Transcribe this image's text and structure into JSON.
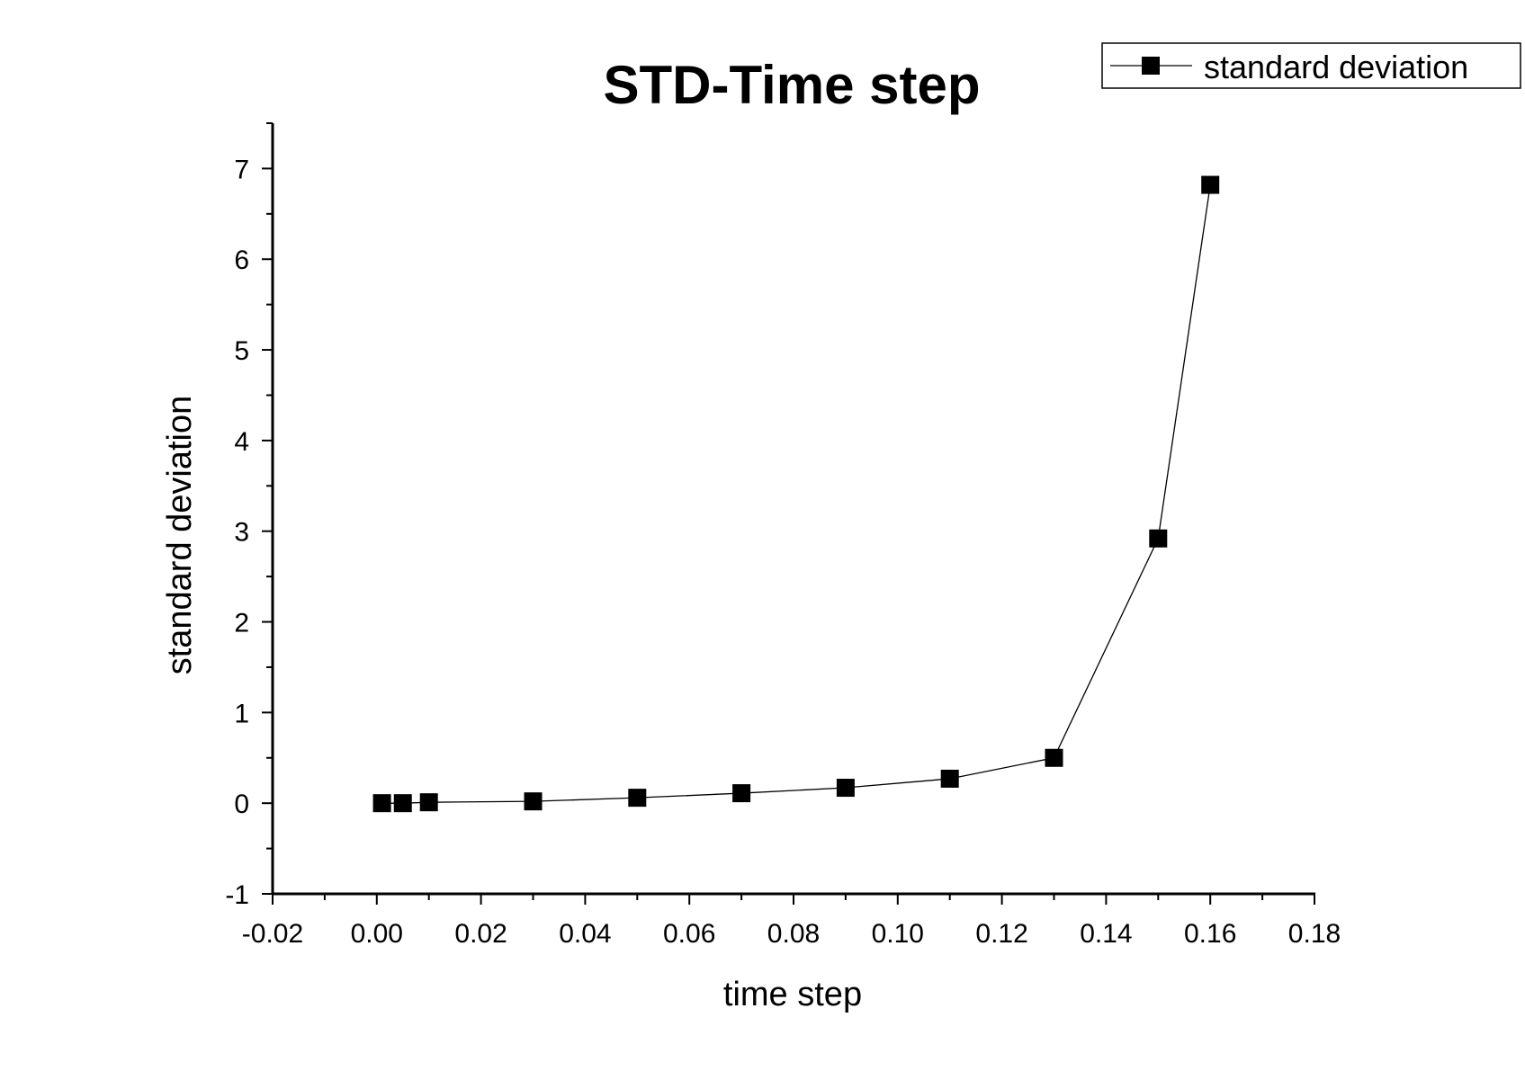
{
  "chart_data": {
    "type": "scatter",
    "title": "STD-Time step",
    "xlabel": "time step",
    "ylabel": "standard deviation",
    "xlim": [
      -0.02,
      0.18
    ],
    "ylim": [
      -1,
      7.5
    ],
    "xticks": [
      "-0.02",
      "0.00",
      "0.02",
      "0.04",
      "0.06",
      "0.08",
      "0.10",
      "0.12",
      "0.14",
      "0.16",
      "0.18"
    ],
    "yticks": [
      "-1",
      "0",
      "1",
      "2",
      "3",
      "4",
      "5",
      "6",
      "7"
    ],
    "grid": false,
    "legend_position": "top-right",
    "series": [
      {
        "name": "standard deviation",
        "marker": "square",
        "line": true,
        "color": "#000000",
        "x": [
          0.001,
          0.005,
          0.01,
          0.03,
          0.05,
          0.07,
          0.09,
          0.11,
          0.13,
          0.15,
          0.16
        ],
        "y": [
          0.0,
          0.0,
          0.01,
          0.02,
          0.06,
          0.11,
          0.17,
          0.27,
          0.5,
          2.92,
          6.82
        ]
      }
    ]
  }
}
